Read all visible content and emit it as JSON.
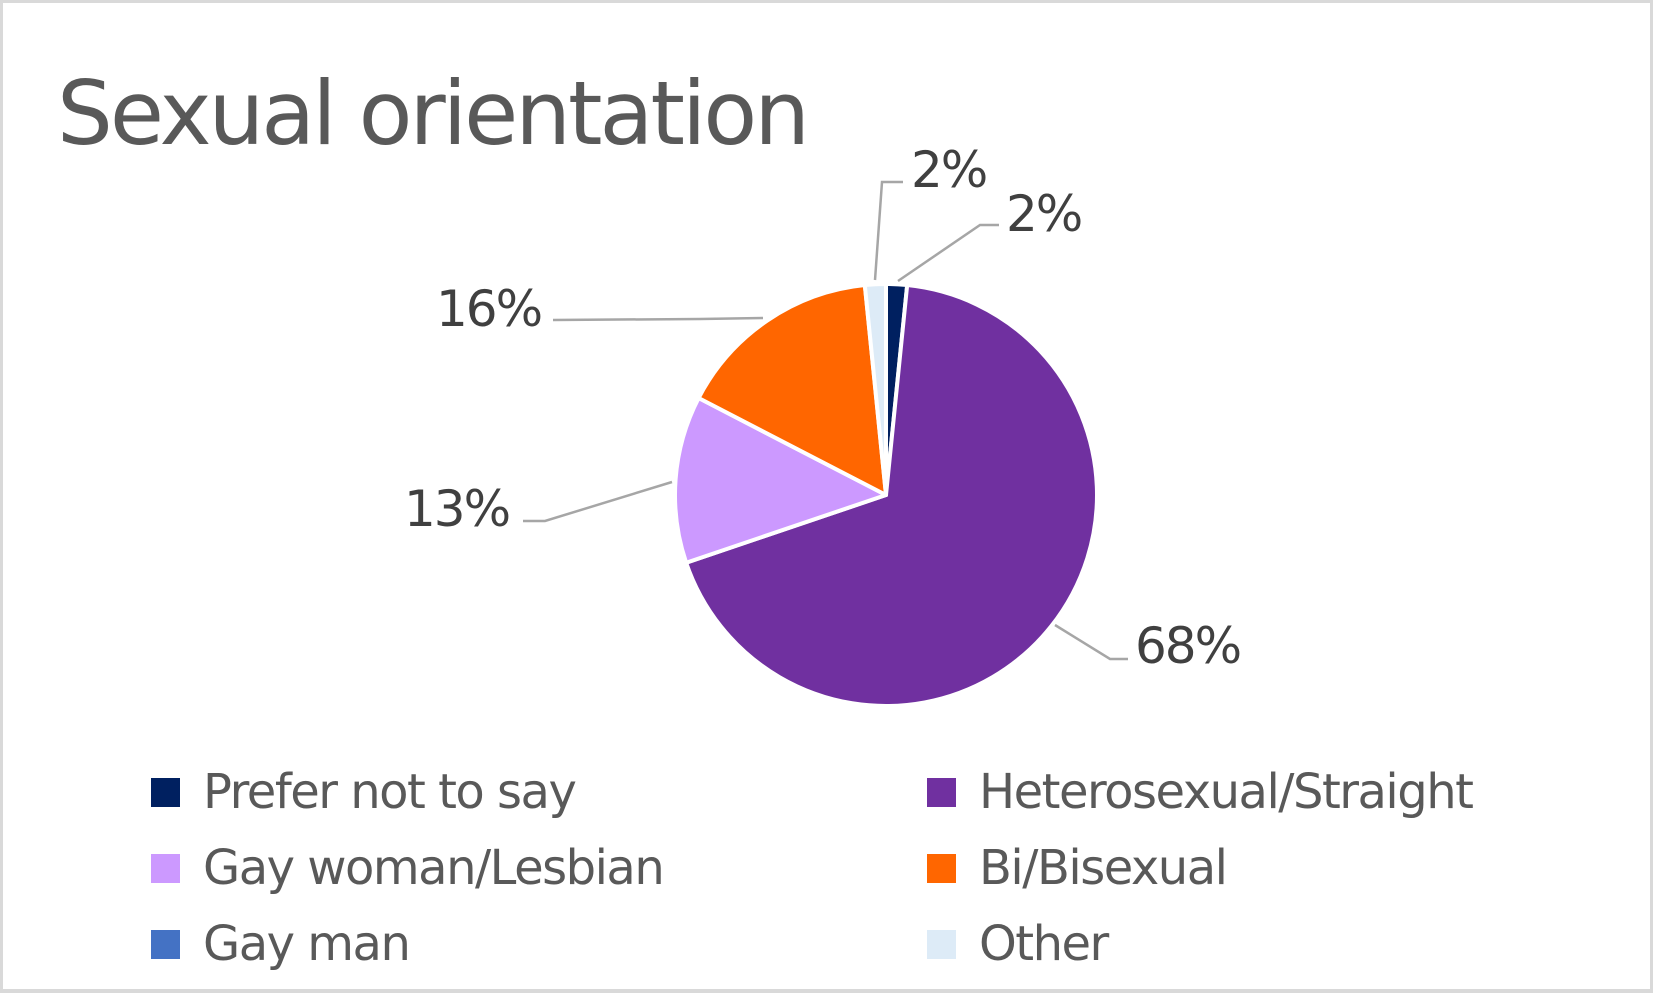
{
  "chart_data": {
    "type": "pie",
    "title": "Sexual orientation",
    "start_angle_deg": 0,
    "direction": "clockwise",
    "slices": [
      {
        "name": "Prefer not to say",
        "value": 1.6,
        "label": "2%",
        "color": "#002060"
      },
      {
        "name": "Heterosexual/Straight",
        "value": 68.2,
        "label": "68%",
        "color": "#7030A0"
      },
      {
        "name": "Gay woman/Lesbian",
        "value": 12.8,
        "label": "13%",
        "color": "#CC99FF"
      },
      {
        "name": "Bi/Bisexual",
        "value": 15.8,
        "label": "16%",
        "color": "#FF6600"
      },
      {
        "name": "Gay man",
        "value": 0,
        "label": "",
        "color": "#4472C4"
      },
      {
        "name": "Other",
        "value": 1.6,
        "label": "2%",
        "color": "#DDEBF7"
      }
    ],
    "legend": {
      "position": "bottom",
      "columns": 2,
      "entries": [
        "Prefer not to say",
        "Heterosexual/Straight",
        "Gay woman/Lesbian",
        "Bi/Bisexual",
        "Gay man",
        "Other"
      ]
    },
    "data_labels": {
      "show": true,
      "format": "percent",
      "leader_lines": true
    }
  },
  "title": "Sexual orientation",
  "labels": {
    "prefer": "2%",
    "other": "2%",
    "bi": "16%",
    "lesbian": "13%",
    "hetero": "68%"
  },
  "legend": [
    {
      "label": "Prefer not to say",
      "color": "#002060"
    },
    {
      "label": "Heterosexual/Straight",
      "color": "#7030A0"
    },
    {
      "label": "Gay woman/Lesbian",
      "color": "#CC99FF"
    },
    {
      "label": "Bi/Bisexual",
      "color": "#FF6600"
    },
    {
      "label": "Gay man",
      "color": "#4472C4"
    },
    {
      "label": "Other",
      "color": "#DDEBF7"
    }
  ],
  "colors": {
    "frame_border": "#D9D9D9",
    "title_text": "#595959",
    "label_text": "#404040",
    "leader_line": "#A6A6A6"
  }
}
